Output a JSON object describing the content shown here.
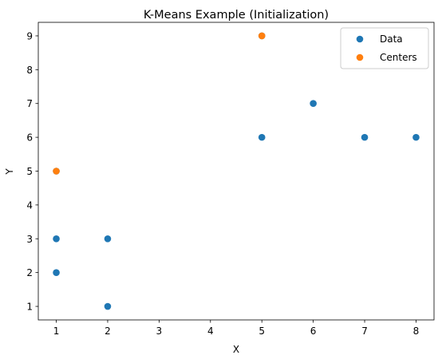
{
  "chart_data": {
    "type": "scatter",
    "title": "K-Means Example (Initialization)",
    "xlabel": "X",
    "ylabel": "Y",
    "xlim": [
      0.65,
      8.35
    ],
    "ylim": [
      0.6,
      9.4
    ],
    "xticks": [
      1,
      2,
      3,
      4,
      5,
      6,
      7,
      8
    ],
    "yticks": [
      1,
      2,
      3,
      4,
      5,
      6,
      7,
      8,
      9
    ],
    "grid": false,
    "legend": {
      "position": "top-right"
    },
    "series": [
      {
        "name": "Data",
        "color": "#1f77b4",
        "points": [
          [
            1,
            2
          ],
          [
            1,
            3
          ],
          [
            1,
            5
          ],
          [
            2,
            1
          ],
          [
            2,
            3
          ],
          [
            5,
            6
          ],
          [
            5,
            9
          ],
          [
            6,
            7
          ],
          [
            7,
            6
          ],
          [
            8,
            6
          ]
        ]
      },
      {
        "name": "Centers",
        "color": "#ff7f0e",
        "points": [
          [
            1,
            5
          ],
          [
            5,
            9
          ]
        ]
      }
    ]
  }
}
